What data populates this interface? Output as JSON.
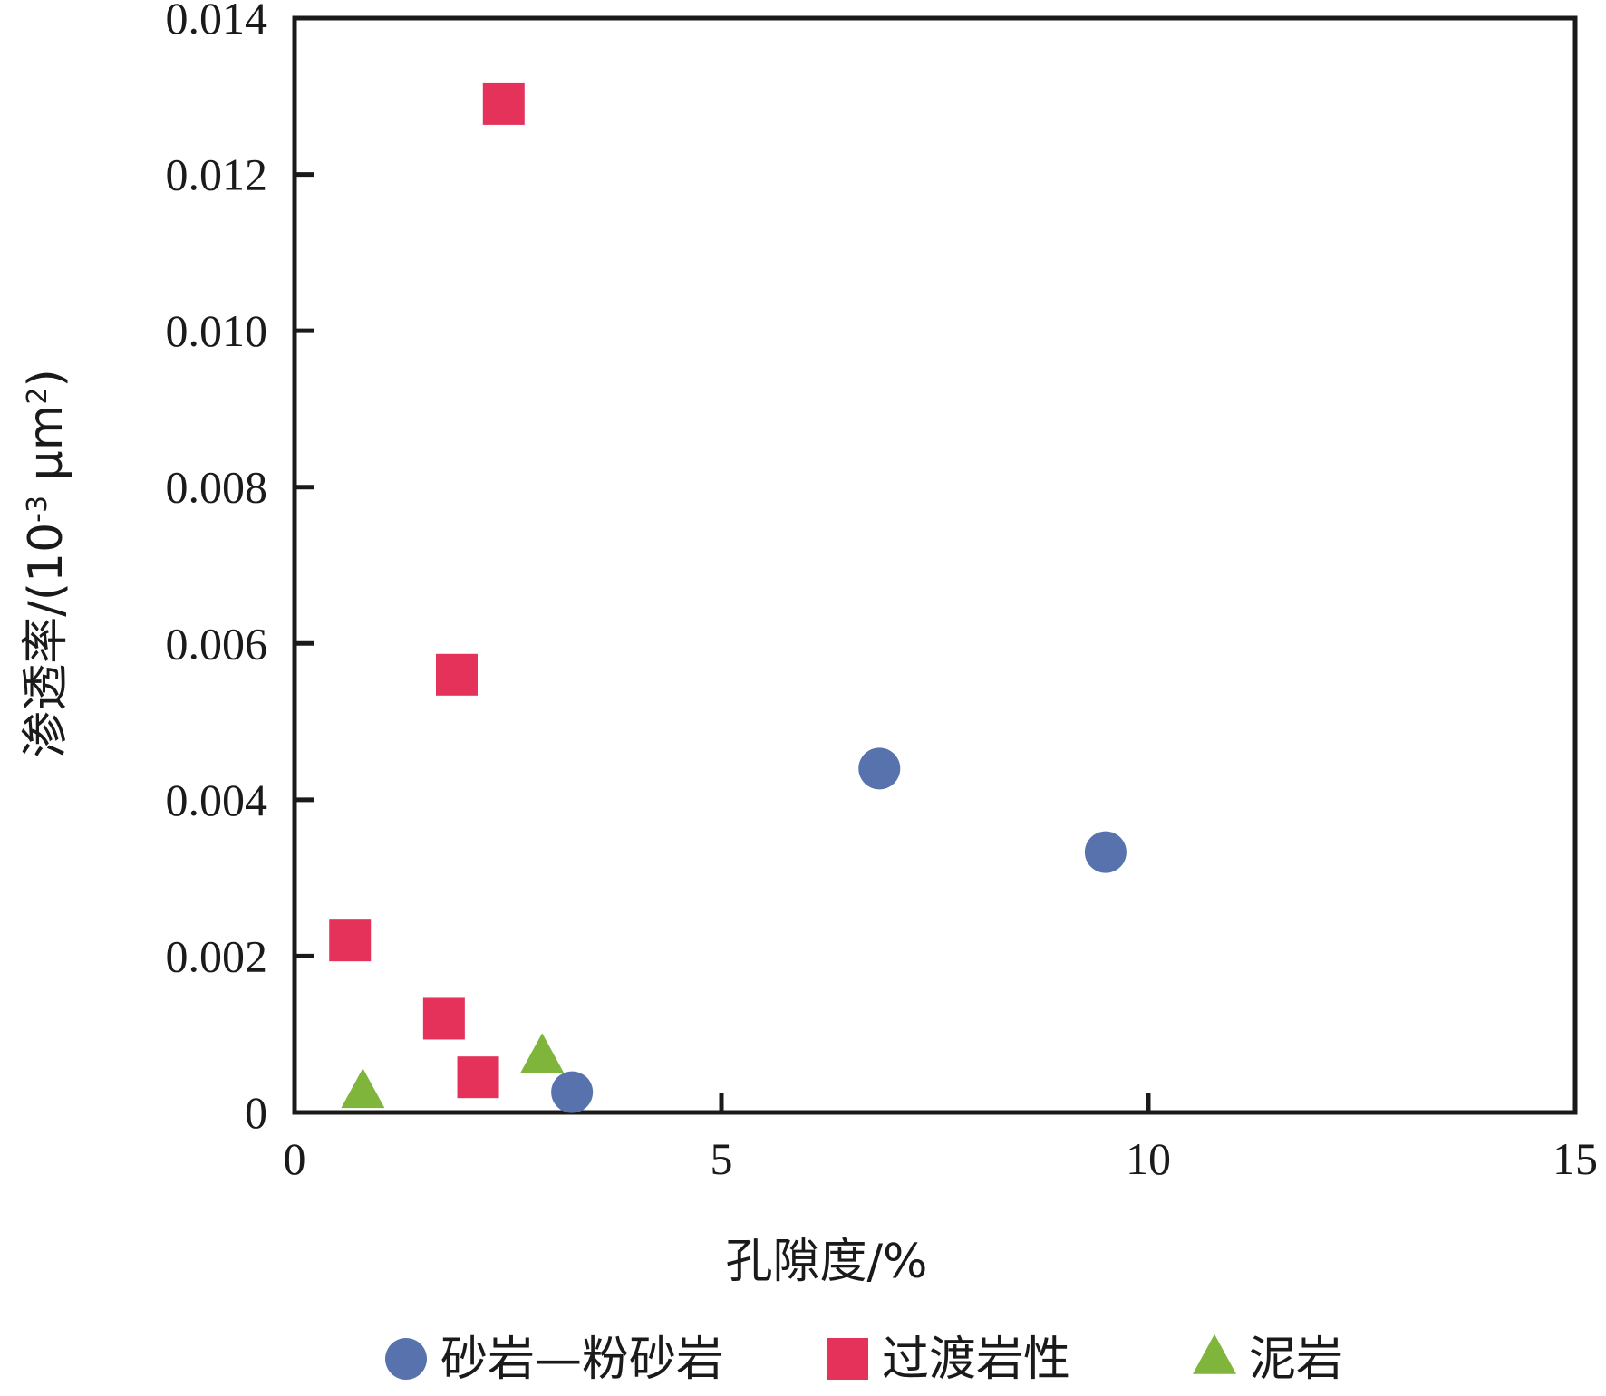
{
  "chart_data": {
    "type": "scatter",
    "title": "",
    "xlabel": "孔隙度/%",
    "ylabel": {
      "prefix": "渗透率/(10",
      "exp1": "-3",
      "mid": " μm",
      "exp2": "2",
      "suffix": ")"
    },
    "xlim": [
      0,
      15
    ],
    "ylim": [
      0,
      0.014
    ],
    "x_ticks": [
      0,
      5,
      10,
      15
    ],
    "x_tick_labels": [
      "0",
      "5",
      "10",
      "15"
    ],
    "y_ticks": [
      0,
      0.002,
      0.004,
      0.006,
      0.008,
      0.01,
      0.012,
      0.014
    ],
    "y_tick_labels": [
      "0",
      "0.002",
      "0.004",
      "0.006",
      "0.008",
      "0.010",
      "0.012",
      "0.014"
    ],
    "grid": false,
    "legend_position": "bottom",
    "series": [
      {
        "name": "砂岩—粉砂岩",
        "marker": "circle",
        "color": "#5872ad",
        "points": [
          {
            "x": 3.25,
            "y": 0.00026
          },
          {
            "x": 6.85,
            "y": 0.0044
          },
          {
            "x": 9.5,
            "y": 0.00333
          }
        ]
      },
      {
        "name": "过渡岩性",
        "marker": "square",
        "color": "#e4325a",
        "points": [
          {
            "x": 2.45,
            "y": 0.0129
          },
          {
            "x": 1.9,
            "y": 0.0056
          },
          {
            "x": 0.65,
            "y": 0.0022
          },
          {
            "x": 1.75,
            "y": 0.0012
          },
          {
            "x": 2.15,
            "y": 0.00045
          }
        ]
      },
      {
        "name": "泥岩",
        "marker": "triangle",
        "color": "#80b53c",
        "points": [
          {
            "x": 0.8,
            "y": 0.00025
          },
          {
            "x": 2.9,
            "y": 0.0007
          }
        ]
      }
    ]
  }
}
